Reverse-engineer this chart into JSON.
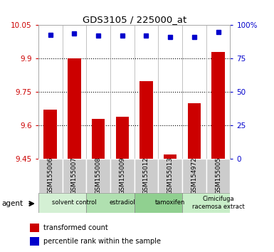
{
  "title": "GDS3105 / 225000_at",
  "samples": [
    "GSM155006",
    "GSM155007",
    "GSM155008",
    "GSM155009",
    "GSM155012",
    "GSM155013",
    "GSM154972",
    "GSM155005"
  ],
  "bar_values": [
    9.67,
    9.9,
    9.63,
    9.64,
    9.8,
    9.47,
    9.7,
    9.93
  ],
  "percentile_values": [
    93,
    94,
    92,
    92,
    92,
    91,
    91,
    95
  ],
  "ylim_left": [
    9.45,
    10.05
  ],
  "ylim_right": [
    0,
    100
  ],
  "yticks_left": [
    9.45,
    9.6,
    9.75,
    9.9,
    10.05
  ],
  "yticks_right": [
    0,
    25,
    50,
    75,
    100
  ],
  "ytick_labels_left": [
    "9.45",
    "9.6",
    "9.75",
    "9.9",
    "10.05"
  ],
  "ytick_labels_right": [
    "0",
    "25",
    "50",
    "75",
    "100%"
  ],
  "bar_color": "#cc0000",
  "dot_color": "#0000cc",
  "agent_groups": [
    {
      "label": "solvent control",
      "start": 0,
      "end": 2,
      "color": "#d4f0d4"
    },
    {
      "label": "estradiol",
      "start": 2,
      "end": 4,
      "color": "#b0e0b0"
    },
    {
      "label": "tamoxifen",
      "start": 4,
      "end": 6,
      "color": "#90d090"
    },
    {
      "label": "Cimicifuga\nracemosa extract",
      "start": 6,
      "end": 8,
      "color": "#c8eec8"
    }
  ],
  "sample_bg_color": "#cccccc",
  "legend_bar_label": "transformed count",
  "legend_dot_label": "percentile rank within the sample",
  "agent_label": "agent",
  "grid_color": "#000000",
  "background_color": "#ffffff"
}
